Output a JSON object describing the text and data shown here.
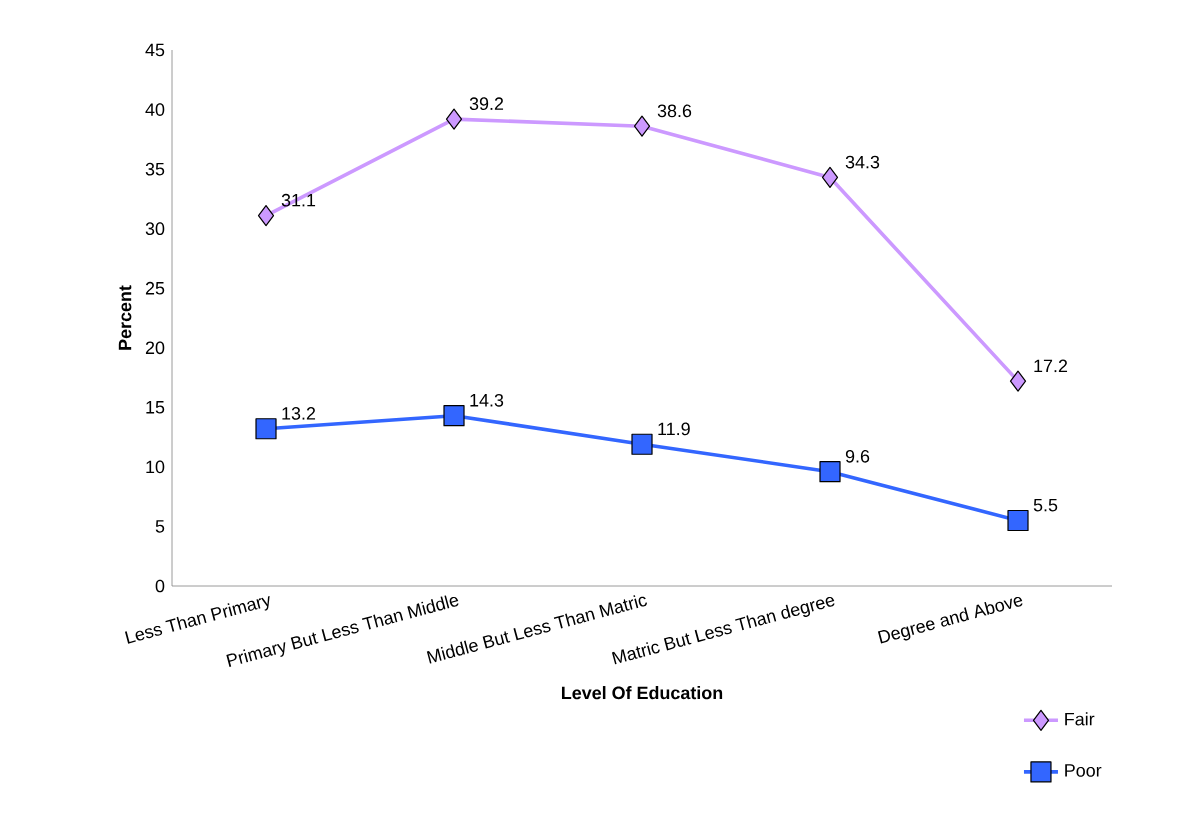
{
  "chart_data": {
    "type": "line",
    "xlabel": "Level Of Education",
    "ylabel": "Percent",
    "categories": [
      "Less Than Primary",
      "Primary But Less Than Middle",
      "Middle  But Less Than Matric",
      "Matric  But Less Than degree",
      "Degree and Above"
    ],
    "series": [
      {
        "name": "Fair",
        "color": "#cc99ff",
        "marker": "diamond",
        "values": [
          31.1,
          39.2,
          38.6,
          34.3,
          17.2
        ]
      },
      {
        "name": "Poor",
        "color": "#3366ff",
        "marker": "square",
        "values": [
          13.2,
          14.3,
          11.9,
          9.6,
          5.5
        ]
      }
    ],
    "ylim": [
      0,
      45
    ],
    "yticks": [
      0,
      5,
      10,
      15,
      20,
      25,
      30,
      35,
      40,
      45
    ],
    "data_labels": true,
    "legend": "bottom right",
    "grid": false
  }
}
